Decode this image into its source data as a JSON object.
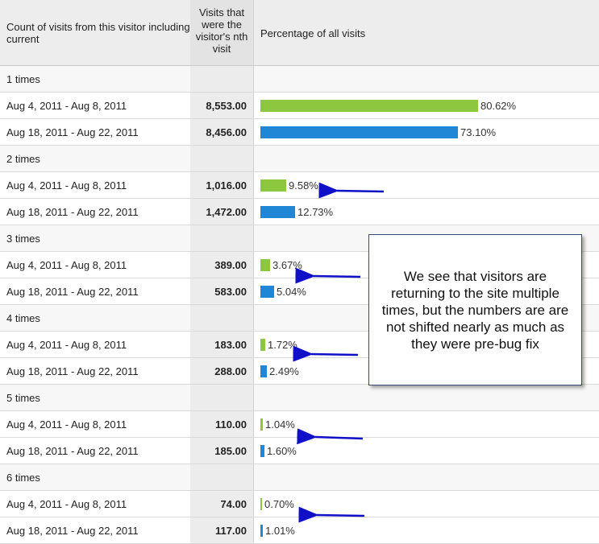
{
  "header": {
    "col1": "Count of visits from this visitor including current",
    "col2": "Visits that were the visitor's nth visit",
    "col3": "Percentage of all visits"
  },
  "groups": [
    {
      "label": "1 times",
      "rows": [
        {
          "range": "Aug 4, 2011 - Aug 8, 2011",
          "visits": "8,553.00",
          "percent": "80.62%",
          "fraction": 0.8062
        },
        {
          "range": "Aug 18, 2011 - Aug 22, 2011",
          "visits": "8,456.00",
          "percent": "73.10%",
          "fraction": 0.731
        }
      ]
    },
    {
      "label": "2 times",
      "rows": [
        {
          "range": "Aug 4, 2011 - Aug 8, 2011",
          "visits": "1,016.00",
          "percent": "9.58%",
          "fraction": 0.0958
        },
        {
          "range": "Aug 18, 2011 - Aug 22, 2011",
          "visits": "1,472.00",
          "percent": "12.73%",
          "fraction": 0.1273
        }
      ]
    },
    {
      "label": "3 times",
      "rows": [
        {
          "range": "Aug 4, 2011 - Aug 8, 2011",
          "visits": "389.00",
          "percent": "3.67%",
          "fraction": 0.0367
        },
        {
          "range": "Aug 18, 2011 - Aug 22, 2011",
          "visits": "583.00",
          "percent": "5.04%",
          "fraction": 0.0504
        }
      ]
    },
    {
      "label": "4 times",
      "rows": [
        {
          "range": "Aug 4, 2011 - Aug 8, 2011",
          "visits": "183.00",
          "percent": "1.72%",
          "fraction": 0.0172
        },
        {
          "range": "Aug 18, 2011 - Aug 22, 2011",
          "visits": "288.00",
          "percent": "2.49%",
          "fraction": 0.0249
        }
      ]
    },
    {
      "label": "5 times",
      "rows": [
        {
          "range": "Aug 4, 2011 - Aug 8, 2011",
          "visits": "110.00",
          "percent": "1.04%",
          "fraction": 0.0104
        },
        {
          "range": "Aug 18, 2011 - Aug 22, 2011",
          "visits": "185.00",
          "percent": "1.60%",
          "fraction": 0.016
        }
      ]
    },
    {
      "label": "6 times",
      "rows": [
        {
          "range": "Aug 4, 2011 - Aug 8, 2011",
          "visits": "74.00",
          "percent": "0.70%",
          "fraction": 0.007
        },
        {
          "range": "Aug 18, 2011 - Aug 22, 2011",
          "visits": "117.00",
          "percent": "1.01%",
          "fraction": 0.0101
        }
      ]
    }
  ],
  "colors": {
    "period1": "#8dc63f",
    "period2": "#1f87d6",
    "arrow": "#1010c8"
  },
  "callout": {
    "text": "We see that visitors are returning to the site multiple times, but the numbers are are not shifted nearly as much as they were pre-bug fix"
  }
}
